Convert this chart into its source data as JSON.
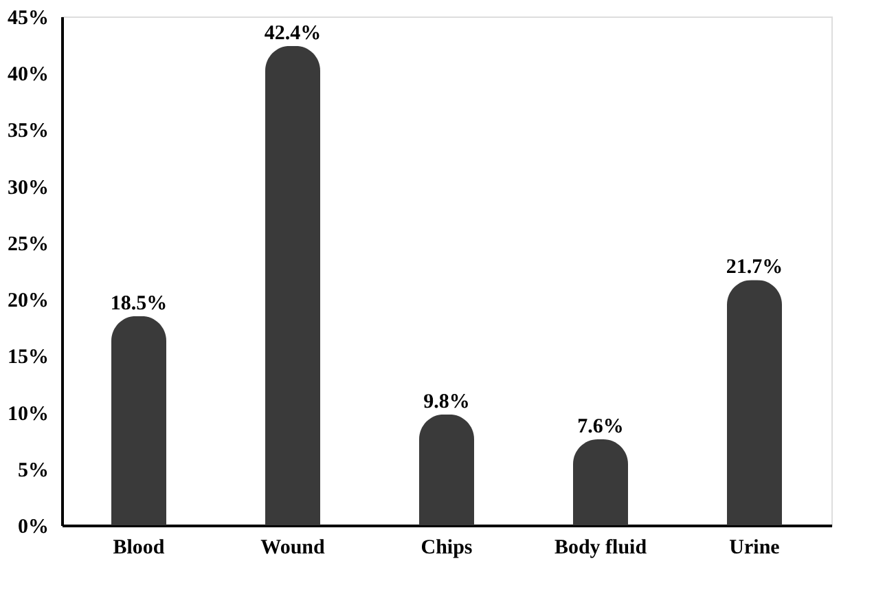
{
  "chart_data": {
    "type": "bar",
    "categories": [
      "Blood",
      "Wound",
      "Chips",
      "Body fluid",
      "Urine"
    ],
    "values": [
      18.5,
      42.4,
      9.8,
      7.6,
      21.7
    ],
    "value_labels": [
      "18.5%",
      "42.4%",
      "9.8%",
      "7.6%",
      "21.7%"
    ],
    "color": "#3a3a3a",
    "ylim": [
      0,
      45
    ],
    "yticks": [
      {
        "value": 0,
        "label": "0%"
      },
      {
        "value": 5,
        "label": "5%"
      },
      {
        "value": 10,
        "label": "10%"
      },
      {
        "value": 15,
        "label": "15%"
      },
      {
        "value": 20,
        "label": "20%"
      },
      {
        "value": 25,
        "label": "25%"
      },
      {
        "value": 30,
        "label": "30%"
      },
      {
        "value": 35,
        "label": "35%"
      },
      {
        "value": 40,
        "label": "40%"
      },
      {
        "value": 45,
        "label": "45%"
      }
    ],
    "grid": false
  }
}
